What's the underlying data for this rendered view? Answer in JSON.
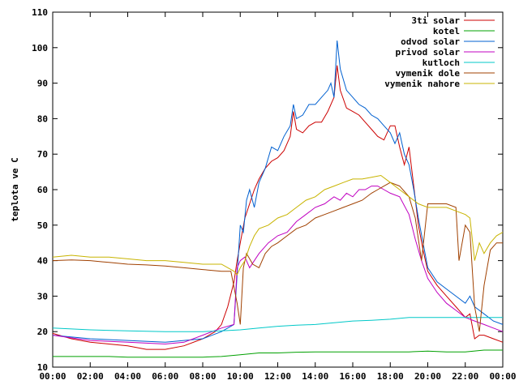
{
  "chart_data": {
    "type": "line",
    "title": "",
    "xlabel": "",
    "ylabel": "teplota ve C",
    "xlim": [
      "00:00",
      "24:00"
    ],
    "ylim": [
      10,
      110
    ],
    "x_ticks": [
      "00:00",
      "02:00",
      "04:00",
      "06:00",
      "08:00",
      "10:00",
      "12:00",
      "14:00",
      "16:00",
      "18:00",
      "20:00",
      "22:00",
      "00:00"
    ],
    "y_ticks": [
      10,
      20,
      30,
      40,
      50,
      60,
      70,
      80,
      90,
      100,
      110
    ],
    "grid": false,
    "legend_position": "top-right",
    "series": [
      {
        "name": "3ti solar",
        "color": "#cc0000",
        "points": [
          [
            "00:00",
            19.5
          ],
          [
            "01:00",
            18
          ],
          [
            "02:00",
            17
          ],
          [
            "03:00",
            16.5
          ],
          [
            "04:00",
            16
          ],
          [
            "05:00",
            15
          ],
          [
            "06:00",
            15
          ],
          [
            "07:00",
            16
          ],
          [
            "08:00",
            18
          ],
          [
            "08:40",
            20
          ],
          [
            "09:00",
            22
          ],
          [
            "09:20",
            27
          ],
          [
            "09:40",
            34
          ],
          [
            "09:50",
            40
          ],
          [
            "10:00",
            45
          ],
          [
            "10:15",
            52
          ],
          [
            "10:30",
            56
          ],
          [
            "10:45",
            60
          ],
          [
            "11:00",
            63
          ],
          [
            "11:20",
            66
          ],
          [
            "11:40",
            68
          ],
          [
            "12:00",
            69
          ],
          [
            "12:20",
            71
          ],
          [
            "12:40",
            75
          ],
          [
            "12:50",
            82
          ],
          [
            "13:00",
            77
          ],
          [
            "13:20",
            76
          ],
          [
            "13:40",
            78
          ],
          [
            "14:00",
            79
          ],
          [
            "14:20",
            79
          ],
          [
            "14:40",
            82
          ],
          [
            "15:00",
            86
          ],
          [
            "15:10",
            95
          ],
          [
            "15:20",
            88
          ],
          [
            "15:40",
            83
          ],
          [
            "16:00",
            82
          ],
          [
            "16:20",
            81
          ],
          [
            "16:40",
            79
          ],
          [
            "17:00",
            77
          ],
          [
            "17:20",
            75
          ],
          [
            "17:40",
            74
          ],
          [
            "18:00",
            78
          ],
          [
            "18:15",
            78
          ],
          [
            "18:30",
            72
          ],
          [
            "18:45",
            67
          ],
          [
            "19:00",
            72
          ],
          [
            "19:15",
            61
          ],
          [
            "19:30",
            50
          ],
          [
            "19:45",
            43
          ],
          [
            "20:00",
            37
          ],
          [
            "20:30",
            33
          ],
          [
            "21:00",
            30
          ],
          [
            "21:30",
            27
          ],
          [
            "22:00",
            24
          ],
          [
            "22:15",
            25
          ],
          [
            "22:30",
            18
          ],
          [
            "22:45",
            19
          ],
          [
            "23:00",
            19
          ],
          [
            "23:30",
            18
          ],
          [
            "24:00",
            17
          ]
        ]
      },
      {
        "name": "kotel",
        "color": "#00a000",
        "points": [
          [
            "00:00",
            13
          ],
          [
            "01:00",
            13
          ],
          [
            "02:00",
            13
          ],
          [
            "03:00",
            13
          ],
          [
            "04:00",
            12.8
          ],
          [
            "05:00",
            12.8
          ],
          [
            "06:00",
            12.8
          ],
          [
            "07:00",
            12.8
          ],
          [
            "08:00",
            12.8
          ],
          [
            "09:00",
            13
          ],
          [
            "10:00",
            13.5
          ],
          [
            "11:00",
            14
          ],
          [
            "12:00",
            14
          ],
          [
            "13:00",
            14.2
          ],
          [
            "14:00",
            14.3
          ],
          [
            "15:00",
            14.3
          ],
          [
            "16:00",
            14.3
          ],
          [
            "17:00",
            14.3
          ],
          [
            "18:00",
            14.3
          ],
          [
            "19:00",
            14.3
          ],
          [
            "20:00",
            14.5
          ],
          [
            "21:00",
            14.3
          ],
          [
            "22:00",
            14.3
          ],
          [
            "23:00",
            14.8
          ],
          [
            "24:00",
            14.8
          ]
        ]
      },
      {
        "name": "odvod solar",
        "color": "#0060d0",
        "points": [
          [
            "00:00",
            19
          ],
          [
            "02:00",
            18
          ],
          [
            "04:00",
            17.5
          ],
          [
            "06:00",
            17
          ],
          [
            "08:00",
            18
          ],
          [
            "09:00",
            20
          ],
          [
            "09:40",
            22
          ],
          [
            "09:50",
            36
          ],
          [
            "10:00",
            50
          ],
          [
            "10:10",
            48
          ],
          [
            "10:20",
            57
          ],
          [
            "10:30",
            60
          ],
          [
            "10:45",
            55
          ],
          [
            "11:00",
            62
          ],
          [
            "11:20",
            66
          ],
          [
            "11:40",
            72
          ],
          [
            "12:00",
            71
          ],
          [
            "12:20",
            75
          ],
          [
            "12:40",
            78
          ],
          [
            "12:50",
            84
          ],
          [
            "13:00",
            80
          ],
          [
            "13:20",
            81
          ],
          [
            "13:40",
            84
          ],
          [
            "14:00",
            84
          ],
          [
            "14:20",
            86
          ],
          [
            "14:40",
            88
          ],
          [
            "14:50",
            90
          ],
          [
            "15:00",
            86
          ],
          [
            "15:10",
            102
          ],
          [
            "15:20",
            94
          ],
          [
            "15:40",
            88
          ],
          [
            "16:00",
            86
          ],
          [
            "16:20",
            84
          ],
          [
            "16:40",
            83
          ],
          [
            "17:00",
            81
          ],
          [
            "17:20",
            80
          ],
          [
            "17:40",
            78
          ],
          [
            "18:00",
            76
          ],
          [
            "18:15",
            73
          ],
          [
            "18:30",
            76
          ],
          [
            "18:45",
            70
          ],
          [
            "19:00",
            67
          ],
          [
            "19:15",
            60
          ],
          [
            "19:30",
            52
          ],
          [
            "19:45",
            45
          ],
          [
            "20:00",
            38
          ],
          [
            "20:30",
            34
          ],
          [
            "21:00",
            32
          ],
          [
            "21:30",
            30
          ],
          [
            "22:00",
            28
          ],
          [
            "22:15",
            30
          ],
          [
            "22:30",
            27
          ],
          [
            "23:00",
            25
          ],
          [
            "23:30",
            23
          ],
          [
            "24:00",
            22
          ]
        ]
      },
      {
        "name": "privod solar",
        "color": "#c000c0",
        "points": [
          [
            "00:00",
            19
          ],
          [
            "02:00",
            17.5
          ],
          [
            "04:00",
            17
          ],
          [
            "06:00",
            16.5
          ],
          [
            "07:00",
            17
          ],
          [
            "08:00",
            19
          ],
          [
            "09:00",
            21
          ],
          [
            "09:40",
            22
          ],
          [
            "09:50",
            38
          ],
          [
            "10:00",
            40
          ],
          [
            "10:15",
            41
          ],
          [
            "10:30",
            38
          ],
          [
            "11:00",
            42
          ],
          [
            "11:30",
            45
          ],
          [
            "12:00",
            47
          ],
          [
            "12:30",
            48
          ],
          [
            "13:00",
            51
          ],
          [
            "13:30",
            53
          ],
          [
            "14:00",
            55
          ],
          [
            "14:30",
            56
          ],
          [
            "15:00",
            58
          ],
          [
            "15:20",
            57
          ],
          [
            "15:40",
            59
          ],
          [
            "16:00",
            58
          ],
          [
            "16:20",
            60
          ],
          [
            "16:40",
            60
          ],
          [
            "17:00",
            61
          ],
          [
            "17:20",
            61
          ],
          [
            "17:40",
            60
          ],
          [
            "18:00",
            59
          ],
          [
            "18:30",
            58
          ],
          [
            "19:00",
            53
          ],
          [
            "19:20",
            46
          ],
          [
            "19:40",
            40
          ],
          [
            "20:00",
            35
          ],
          [
            "20:30",
            31
          ],
          [
            "21:00",
            28
          ],
          [
            "21:30",
            26
          ],
          [
            "22:00",
            24
          ],
          [
            "22:30",
            23
          ],
          [
            "23:00",
            22
          ],
          [
            "23:30",
            21
          ],
          [
            "24:00",
            20
          ]
        ]
      },
      {
        "name": "kutloch",
        "color": "#00c8c8",
        "points": [
          [
            "00:00",
            21
          ],
          [
            "02:00",
            20.5
          ],
          [
            "04:00",
            20.2
          ],
          [
            "06:00",
            20
          ],
          [
            "08:00",
            20
          ],
          [
            "09:00",
            20.2
          ],
          [
            "10:00",
            20.5
          ],
          [
            "11:00",
            21
          ],
          [
            "12:00",
            21.5
          ],
          [
            "13:00",
            21.8
          ],
          [
            "14:00",
            22
          ],
          [
            "15:00",
            22.5
          ],
          [
            "16:00",
            23
          ],
          [
            "17:00",
            23.2
          ],
          [
            "18:00",
            23.5
          ],
          [
            "19:00",
            24
          ],
          [
            "20:00",
            24
          ],
          [
            "21:00",
            24
          ],
          [
            "22:00",
            24
          ],
          [
            "23:00",
            24
          ],
          [
            "24:00",
            24
          ]
        ]
      },
      {
        "name": "vymenik dole",
        "color": "#a04000",
        "points": [
          [
            "00:00",
            40
          ],
          [
            "01:00",
            40.2
          ],
          [
            "02:00",
            40
          ],
          [
            "03:00",
            39.5
          ],
          [
            "04:00",
            39
          ],
          [
            "05:00",
            38.8
          ],
          [
            "06:00",
            38.5
          ],
          [
            "07:00",
            38
          ],
          [
            "08:00",
            37.5
          ],
          [
            "09:00",
            37
          ],
          [
            "09:30",
            37
          ],
          [
            "09:50",
            28
          ],
          [
            "10:00",
            22
          ],
          [
            "10:10",
            38
          ],
          [
            "10:20",
            42
          ],
          [
            "10:40",
            39
          ],
          [
            "11:00",
            38
          ],
          [
            "11:20",
            42
          ],
          [
            "11:40",
            44
          ],
          [
            "12:00",
            45
          ],
          [
            "12:30",
            47
          ],
          [
            "13:00",
            49
          ],
          [
            "13:30",
            50
          ],
          [
            "14:00",
            52
          ],
          [
            "14:30",
            53
          ],
          [
            "15:00",
            54
          ],
          [
            "15:30",
            55
          ],
          [
            "16:00",
            56
          ],
          [
            "16:30",
            57
          ],
          [
            "17:00",
            59
          ],
          [
            "17:20",
            60
          ],
          [
            "17:40",
            61
          ],
          [
            "18:00",
            62
          ],
          [
            "18:30",
            61
          ],
          [
            "19:00",
            58
          ],
          [
            "19:20",
            52
          ],
          [
            "19:40",
            40
          ],
          [
            "20:00",
            56
          ],
          [
            "20:30",
            56
          ],
          [
            "21:00",
            56
          ],
          [
            "21:30",
            55
          ],
          [
            "21:40",
            40
          ],
          [
            "22:00",
            50
          ],
          [
            "22:15",
            48
          ],
          [
            "22:30",
            27
          ],
          [
            "22:45",
            20
          ],
          [
            "23:00",
            33
          ],
          [
            "23:20",
            43
          ],
          [
            "23:40",
            45
          ],
          [
            "24:00",
            45
          ]
        ]
      },
      {
        "name": "vymenik nahore",
        "color": "#c8b400",
        "points": [
          [
            "00:00",
            41
          ],
          [
            "01:00",
            41.5
          ],
          [
            "02:00",
            41
          ],
          [
            "03:00",
            41
          ],
          [
            "04:00",
            40.5
          ],
          [
            "05:00",
            40
          ],
          [
            "06:00",
            40
          ],
          [
            "07:00",
            39.5
          ],
          [
            "08:00",
            39
          ],
          [
            "09:00",
            39
          ],
          [
            "09:40",
            37
          ],
          [
            "09:50",
            36
          ],
          [
            "10:00",
            38
          ],
          [
            "10:15",
            40
          ],
          [
            "10:30",
            44
          ],
          [
            "10:45",
            47
          ],
          [
            "11:00",
            49
          ],
          [
            "11:30",
            50
          ],
          [
            "12:00",
            52
          ],
          [
            "12:30",
            53
          ],
          [
            "13:00",
            55
          ],
          [
            "13:30",
            57
          ],
          [
            "14:00",
            58
          ],
          [
            "14:30",
            60
          ],
          [
            "15:00",
            61
          ],
          [
            "15:30",
            62
          ],
          [
            "16:00",
            63
          ],
          [
            "16:30",
            63
          ],
          [
            "17:00",
            63.5
          ],
          [
            "17:30",
            64
          ],
          [
            "18:00",
            62
          ],
          [
            "18:30",
            60
          ],
          [
            "19:00",
            58
          ],
          [
            "19:30",
            56
          ],
          [
            "20:00",
            55
          ],
          [
            "20:30",
            55
          ],
          [
            "21:00",
            55
          ],
          [
            "21:30",
            54
          ],
          [
            "22:00",
            53
          ],
          [
            "22:15",
            52
          ],
          [
            "22:30",
            40
          ],
          [
            "22:45",
            45
          ],
          [
            "23:00",
            42
          ],
          [
            "23:20",
            45
          ],
          [
            "23:40",
            47
          ],
          [
            "24:00",
            48
          ]
        ]
      }
    ]
  }
}
